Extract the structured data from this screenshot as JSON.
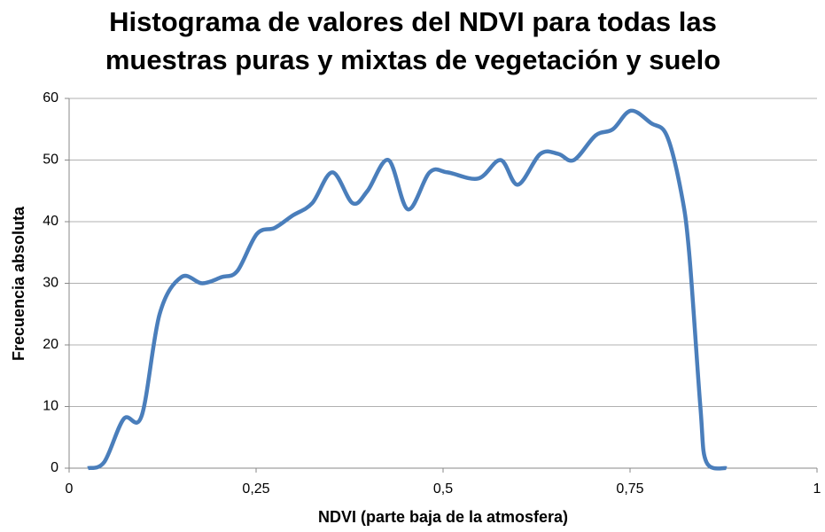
{
  "chart_data": {
    "type": "line",
    "title": [
      "Histograma de valores del NDVI para todas las",
      "muestras puras y mixtas de vegetación y suelo"
    ],
    "x_label": "NDVI (parte baja de la atmosfera)",
    "y_label": "Frecuencia absoluta",
    "series": [
      {
        "name": "NDVI",
        "color": "#4a7ebb",
        "x": [
          0.025,
          0.047,
          0.073,
          0.097,
          0.121,
          0.15,
          0.178,
          0.204,
          0.225,
          0.251,
          0.275,
          0.299,
          0.325,
          0.352,
          0.379,
          0.399,
          0.427,
          0.453,
          0.482,
          0.506,
          0.547,
          0.577,
          0.6,
          0.63,
          0.654,
          0.675,
          0.704,
          0.727,
          0.751,
          0.778,
          0.799,
          0.818,
          0.829,
          0.844,
          0.852,
          0.879
        ],
        "values": [
          0,
          1,
          8,
          8.5,
          25,
          31,
          30,
          31,
          32,
          38,
          39,
          41,
          43,
          48,
          43,
          45,
          50,
          42,
          48,
          48,
          47,
          50,
          46,
          51,
          51,
          50,
          54,
          55,
          58,
          56,
          54,
          45,
          35,
          10,
          1,
          0
        ]
      }
    ],
    "xlim": [
      0,
      1
    ],
    "xticks": [
      0,
      {
        "value": 0.25,
        "label": "0,25"
      },
      {
        "value": 0.5,
        "label": "0,5"
      },
      {
        "value": 0.75,
        "label": "0,75"
      },
      1
    ],
    "ylim": [
      0,
      60
    ],
    "yticks": [
      0,
      10,
      20,
      30,
      40,
      50,
      60
    ],
    "grid": true
  }
}
